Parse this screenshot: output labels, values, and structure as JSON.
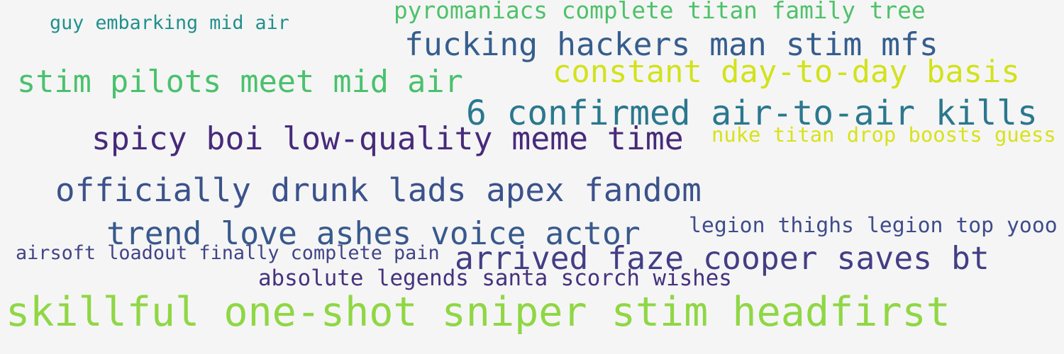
{
  "phrases": [
    {
      "text": "guy embarking mid air",
      "color": "#20908d"
    },
    {
      "text": "pyromaniacs complete titan family tree",
      "color": "#4fc16b"
    },
    {
      "text": "fucking hackers man stim mfs",
      "color": "#355e8d"
    },
    {
      "text": "stim pilots meet mid air",
      "color": "#4ac16d"
    },
    {
      "text": "constant day-to-day basis",
      "color": "#d2e21b"
    },
    {
      "text": "6 confirmed air-to-air kills",
      "color": "#2a788e"
    },
    {
      "text": "spicy boi low-quality meme time",
      "color": "#472a7a"
    },
    {
      "text": "nuke titan drop boosts guess",
      "color": "#d8e219"
    },
    {
      "text": "officially drunk lads apex fandom",
      "color": "#3b528b"
    },
    {
      "text": "trend love ashes voice actor",
      "color": "#38598c"
    },
    {
      "text": "legion thighs legion top yooo",
      "color": "#3e4c8a"
    },
    {
      "text": "airsoft loadout finally complete pain",
      "color": "#414487"
    },
    {
      "text": "arrived faze cooper saves bt",
      "color": "#433e85"
    },
    {
      "text": "absolute legends santa scorch wishes",
      "color": "#46327e"
    },
    {
      "text": "skillful one-shot sniper stim headfirst",
      "color": "#8fd744"
    }
  ]
}
